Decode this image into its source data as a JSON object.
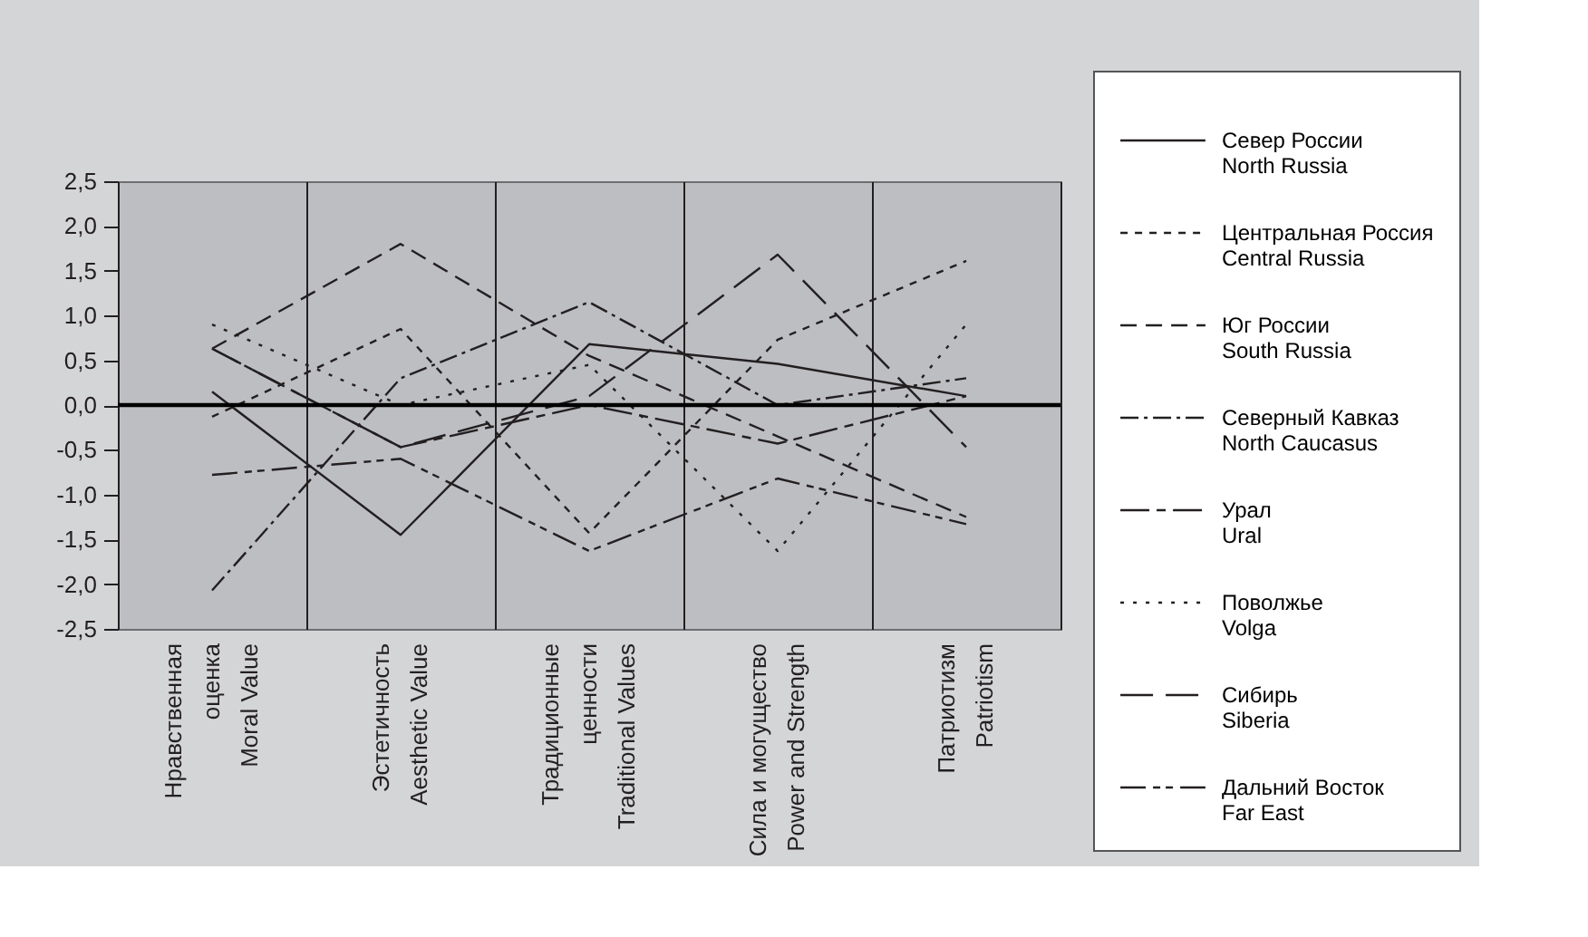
{
  "chart_data": {
    "type": "line",
    "categories": [
      "Нравственная\nоценка\nMoral Value",
      "Эстетичность\nAesthetic Value",
      "Традиционные\nценности\nTraditional Values",
      "Сила и могущество\nPower and Strength",
      "Патриотизм\nPatriotism"
    ],
    "series": [
      {
        "name": "Север России\nNorth Russia",
        "color": "#231f20",
        "line_style": "solid",
        "values": [
          0.15,
          -1.45,
          0.68,
          0.46,
          0.1
        ]
      },
      {
        "name": "Центральная Россия\nCentral Russia",
        "color": "#231f20",
        "line_style": "dashed",
        "values": [
          -0.13,
          0.85,
          -1.43,
          0.73,
          1.61
        ]
      },
      {
        "name": "Юг России\nSouth Russia",
        "color": "#231f20",
        "line_style": "longdash",
        "values": [
          0.63,
          1.8,
          0.55,
          -0.35,
          -1.25
        ]
      },
      {
        "name": "Северный Кавказ\nNorth Caucasus",
        "color": "#231f20",
        "line_style": "dashdot",
        "values": [
          -2.07,
          0.3,
          1.15,
          0.0,
          0.3
        ]
      },
      {
        "name": "Урал\nUral",
        "color": "#231f20",
        "line_style": "longshort",
        "values": [
          0.63,
          -0.47,
          0.0,
          -0.43,
          0.1
        ]
      },
      {
        "name": "Поволжье\nVolga",
        "color": "#231f20",
        "line_style": "dotted",
        "values": [
          0.9,
          0.0,
          0.45,
          -1.63,
          0.9
        ]
      },
      {
        "name": "Сибирь\nSiberia",
        "color": "#231f20",
        "line_style": "longgap",
        "values": [
          0.63,
          -0.47,
          0.1,
          1.68,
          -0.47
        ]
      },
      {
        "name": "Дальний Восток\nFar East",
        "color": "#231f20",
        "line_style": "longshortshort",
        "values": [
          -0.78,
          -0.6,
          -1.63,
          -0.82,
          -1.33
        ]
      }
    ],
    "ylim": [
      -2.5,
      2.5
    ],
    "yticks": [
      {
        "value": -2.5,
        "label": "-2,5"
      },
      {
        "value": -2.0,
        "label": "-2,0"
      },
      {
        "value": -1.5,
        "label": "-1,5"
      },
      {
        "value": -1.0,
        "label": "-1,0"
      },
      {
        "value": -0.5,
        "label": "-0,5"
      },
      {
        "value": 0.0,
        "label": "0,0"
      },
      {
        "value": 0.5,
        "label": "0,5"
      },
      {
        "value": 1.0,
        "label": "1,0"
      },
      {
        "value": 1.5,
        "label": "1,5"
      },
      {
        "value": 2.0,
        "label": "2,0"
      },
      {
        "value": 2.5,
        "label": "2,5"
      }
    ],
    "ref_lines": [
      {
        "axis": "y",
        "value": 0,
        "color": "#000000"
      }
    ],
    "grid": "x",
    "legend": "right",
    "marker": "none"
  }
}
